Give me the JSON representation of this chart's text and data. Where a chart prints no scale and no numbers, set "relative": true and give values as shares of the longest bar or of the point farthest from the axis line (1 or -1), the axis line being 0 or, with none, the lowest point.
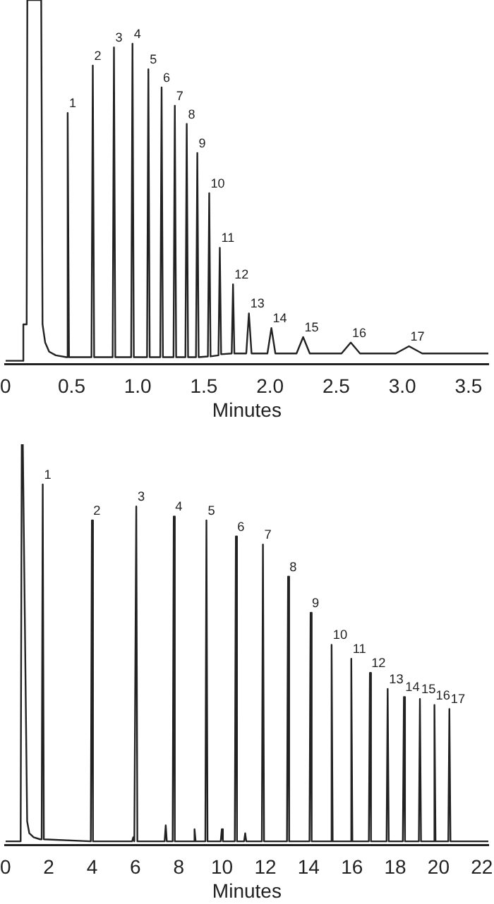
{
  "chart_data": [
    {
      "type": "line",
      "relative": true,
      "xlabel": "Minutes",
      "xlim": [
        0,
        3.65
      ],
      "xticks": [
        0,
        0.5,
        {
          "value": 1,
          "label": "1.0"
        },
        1.5,
        {
          "value": 2,
          "label": "2.0"
        },
        2.5,
        {
          "value": 3,
          "label": "3.0"
        },
        3.5
      ],
      "grid": false,
      "legend": false,
      "marker": "none",
      "series": [
        {
          "color": "#222222",
          "x": [
            0,
            0.13,
            0.135,
            0.16,
            0.165,
            0.27,
            0.28,
            0.3,
            0.33,
            0.38,
            0.46,
            0.47,
            0.48,
            0.65,
            0.66,
            0.67,
            0.81,
            0.82,
            0.83,
            0.95,
            0.96,
            0.97,
            1.07,
            1.08,
            1.09,
            1.17,
            1.18,
            1.19,
            1.27,
            1.28,
            1.29,
            1.36,
            1.37,
            1.38,
            1.44,
            1.45,
            1.46,
            1.53,
            1.54,
            1.55,
            1.61,
            1.62,
            1.63,
            1.71,
            1.72,
            1.73,
            1.82,
            1.84,
            1.86,
            1.98,
            2.01,
            2.04,
            2.2,
            2.25,
            2.3,
            2.54,
            2.61,
            2.68,
            2.95,
            3.05,
            3.15,
            3.65
          ],
          "values": [
            0.01,
            0.01,
            0.11,
            0.11,
            1,
            1,
            0.11,
            0.06,
            0.035,
            0.025,
            0.02,
            0.69,
            0.02,
            0.02,
            0.82,
            0.02,
            0.02,
            0.87,
            0.02,
            0.02,
            0.88,
            0.02,
            0.02,
            0.81,
            0.02,
            0.02,
            0.76,
            0.02,
            0.02,
            0.71,
            0.02,
            0.02,
            0.66,
            0.02,
            0.02,
            0.58,
            0.02,
            0.022,
            0.47,
            0.022,
            0.025,
            0.32,
            0.028,
            0.03,
            0.22,
            0.03,
            0.03,
            0.14,
            0.03,
            0.03,
            0.1,
            0.03,
            0.03,
            0.075,
            0.03,
            0.03,
            0.06,
            0.03,
            0.03,
            0.05,
            0.03,
            0.03
          ]
        }
      ],
      "annotations": [
        {
          "text": "1",
          "x": 0.47,
          "y": 0.69
        },
        {
          "text": "2",
          "x": 0.66,
          "y": 0.82
        },
        {
          "text": "3",
          "x": 0.82,
          "y": 0.87
        },
        {
          "text": "4",
          "x": 0.96,
          "y": 0.88
        },
        {
          "text": "5",
          "x": 1.08,
          "y": 0.81
        },
        {
          "text": "6",
          "x": 1.18,
          "y": 0.76
        },
        {
          "text": "7",
          "x": 1.28,
          "y": 0.71
        },
        {
          "text": "8",
          "x": 1.37,
          "y": 0.66
        },
        {
          "text": "9",
          "x": 1.45,
          "y": 0.58
        },
        {
          "text": "10",
          "x": 1.54,
          "y": 0.47
        },
        {
          "text": "11",
          "x": 1.62,
          "y": 0.32
        },
        {
          "text": "12",
          "x": 1.72,
          "y": 0.22
        },
        {
          "text": "13",
          "x": 1.84,
          "y": 0.14
        },
        {
          "text": "14",
          "x": 2.01,
          "y": 0.1
        },
        {
          "text": "15",
          "x": 2.25,
          "y": 0.075
        },
        {
          "text": "16",
          "x": 2.61,
          "y": 0.06
        },
        {
          "text": "17",
          "x": 3.05,
          "y": 0.05
        }
      ]
    },
    {
      "type": "line",
      "relative": true,
      "xlabel": "Minutes",
      "xlim": [
        0,
        22.3
      ],
      "xticks": [
        0,
        2,
        4,
        6,
        8,
        10,
        12,
        14,
        16,
        18,
        20,
        22
      ],
      "grid": false,
      "legend": false,
      "marker": "none",
      "series": [
        {
          "color": "#222222",
          "x": [
            0,
            0.7,
            0.75,
            0.8,
            1.0,
            1.1,
            1.3,
            1.6,
            1.67,
            1.72,
            1.77,
            3.94,
            3.99,
            4.04,
            5.85,
            5.9,
            5.95,
            5.99,
            6.04,
            6.09,
            7.35,
            7.4,
            7.45,
            7.72,
            7.77,
            7.82,
            8.68,
            8.73,
            8.78,
            9.23,
            9.28,
            9.33,
            9.94,
            9.99,
            10.04,
            10.59,
            10.64,
            10.69,
            11.02,
            11.07,
            11.12,
            11.84,
            11.89,
            11.94,
            13.0,
            13.05,
            13.1,
            14.04,
            14.09,
            14.14,
            15.01,
            15.06,
            15.11,
            15.92,
            15.97,
            16.02,
            16.78,
            16.83,
            16.88,
            17.6,
            17.65,
            17.7,
            18.35,
            18.4,
            18.45,
            19.09,
            19.14,
            19.19,
            19.76,
            19.81,
            19.86,
            20.45,
            20.5,
            20.55,
            22.3
          ],
          "values": [
            0.01,
            0.01,
            1,
            1,
            0.06,
            0.03,
            0.02,
            0.015,
            0.015,
            0.9,
            0.015,
            0.01,
            0.81,
            0.01,
            0.01,
            0.02,
            0.01,
            0.01,
            0.845,
            0.01,
            0.01,
            0.05,
            0.01,
            0.01,
            0.82,
            0.01,
            0.01,
            0.04,
            0.01,
            0.01,
            0.81,
            0.01,
            0.01,
            0.04,
            0.01,
            0.01,
            0.77,
            0.01,
            0.01,
            0.03,
            0.01,
            0.01,
            0.75,
            0.01,
            0.01,
            0.67,
            0.01,
            0.01,
            0.58,
            0.01,
            0.01,
            0.5,
            0.01,
            0.01,
            0.465,
            0.01,
            0.01,
            0.43,
            0.01,
            0.01,
            0.39,
            0.01,
            0.01,
            0.37,
            0.01,
            0.01,
            0.365,
            0.01,
            0.01,
            0.35,
            0.01,
            0.01,
            0.34,
            0.01,
            0.01
          ]
        }
      ],
      "annotations": [
        {
          "text": "1",
          "x": 1.72,
          "y": 0.9
        },
        {
          "text": "2",
          "x": 3.99,
          "y": 0.81
        },
        {
          "text": "3",
          "x": 6.04,
          "y": 0.845
        },
        {
          "text": "4",
          "x": 7.77,
          "y": 0.82
        },
        {
          "text": "5",
          "x": 9.28,
          "y": 0.81
        },
        {
          "text": "6",
          "x": 10.64,
          "y": 0.77
        },
        {
          "text": "7",
          "x": 11.89,
          "y": 0.75
        },
        {
          "text": "8",
          "x": 13.05,
          "y": 0.67
        },
        {
          "text": "9",
          "x": 14.09,
          "y": 0.58
        },
        {
          "text": "10",
          "x": 15.06,
          "y": 0.5
        },
        {
          "text": "11",
          "x": 15.97,
          "y": 0.465
        },
        {
          "text": "12",
          "x": 16.83,
          "y": 0.43
        },
        {
          "text": "13",
          "x": 17.65,
          "y": 0.39
        },
        {
          "text": "14",
          "x": 18.4,
          "y": 0.37
        },
        {
          "text": "15",
          "x": 19.14,
          "y": 0.365
        },
        {
          "text": "16",
          "x": 19.81,
          "y": 0.35
        },
        {
          "text": "17",
          "x": 20.5,
          "y": 0.34
        }
      ]
    }
  ]
}
